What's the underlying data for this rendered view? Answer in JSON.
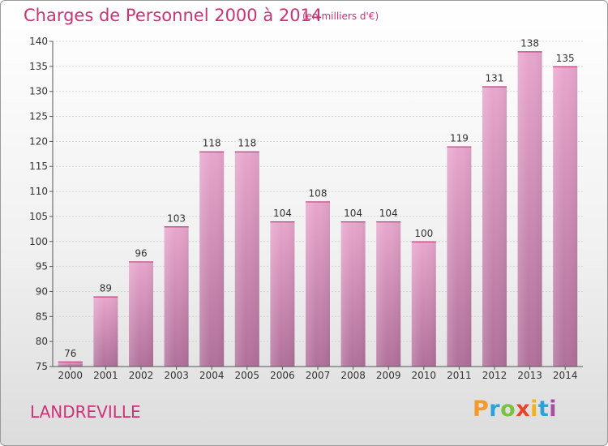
{
  "header": {
    "title": "Charges de Personnel 2000 à 2014",
    "subtitle": "(en milliers d'€)"
  },
  "commune": "LANDREVILLE",
  "logo": {
    "letters": [
      "P",
      "r",
      "o",
      "x",
      "i",
      "t",
      "i"
    ],
    "colors": [
      "#f39a2a",
      "#2aa3d8",
      "#7cc242",
      "#e8452b",
      "#f2b21f",
      "#2aa3d8",
      "#a64ea0"
    ]
  },
  "colors": {
    "accent": "#cc3377",
    "bar_light": "#e8a6cc",
    "bar_dark": "#b0709a"
  },
  "chart_data": {
    "type": "bar",
    "title": "Charges de Personnel 2000 à 2014",
    "subtitle": "(en milliers d'€)",
    "categories": [
      "2000",
      "2001",
      "2002",
      "2003",
      "2004",
      "2005",
      "2006",
      "2007",
      "2008",
      "2009",
      "2010",
      "2011",
      "2012",
      "2013",
      "2014"
    ],
    "values": [
      76,
      89,
      96,
      103,
      118,
      118,
      104,
      108,
      104,
      104,
      100,
      119,
      131,
      138,
      135
    ],
    "ylim": [
      75,
      140
    ],
    "yticks": [
      75,
      80,
      85,
      90,
      95,
      100,
      105,
      110,
      115,
      120,
      125,
      130,
      135,
      140
    ],
    "grid": true,
    "xlabel": "",
    "ylabel": ""
  }
}
